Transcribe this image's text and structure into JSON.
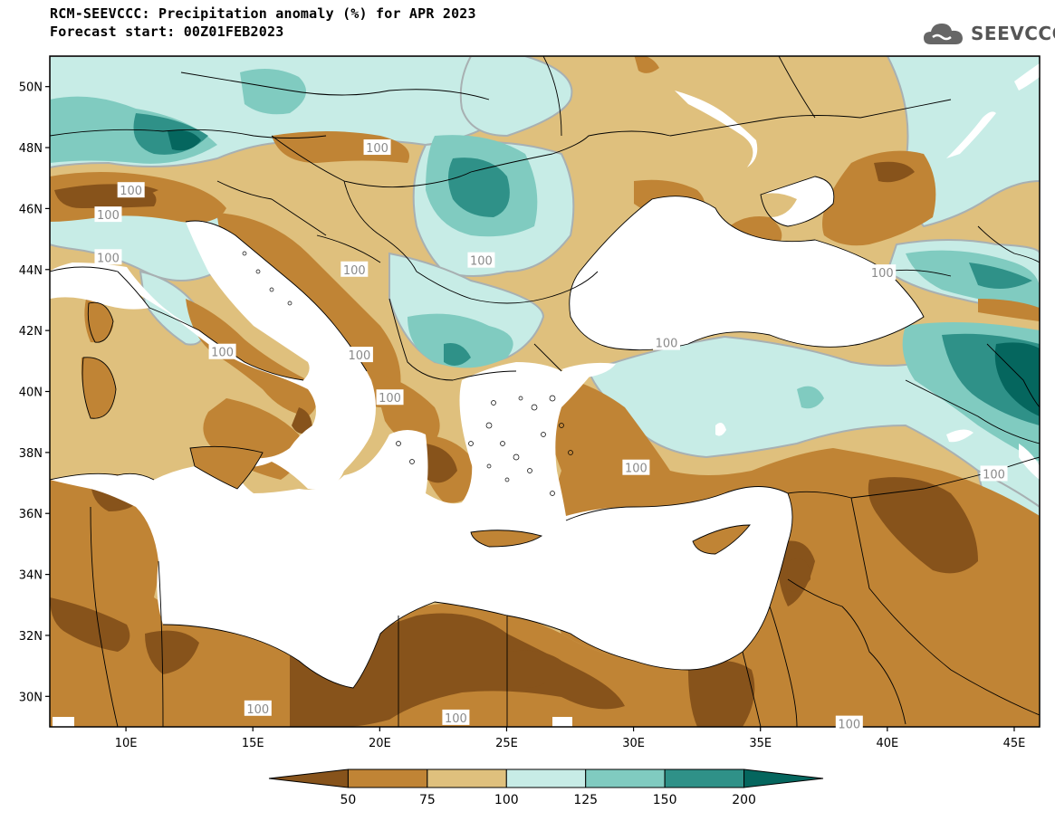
{
  "header": {
    "title_line1": "RCM-SEEVCCC: Precipitation anomaly (%) for APR 2023",
    "title_line2": "Forecast start: 00Z01FEB2023",
    "logo_text": "SEEVCCC",
    "logo_icon": "cloud-icon"
  },
  "map": {
    "lon_range": [
      7,
      46
    ],
    "lat_range": [
      29,
      51
    ],
    "lat_ticks": [
      {
        "value": 50,
        "label": "50N"
      },
      {
        "value": 48,
        "label": "48N"
      },
      {
        "value": 46,
        "label": "46N"
      },
      {
        "value": 44,
        "label": "44N"
      },
      {
        "value": 42,
        "label": "42N"
      },
      {
        "value": 40,
        "label": "40N"
      },
      {
        "value": 38,
        "label": "38N"
      },
      {
        "value": 36,
        "label": "36N"
      },
      {
        "value": 34,
        "label": "34N"
      },
      {
        "value": 32,
        "label": "32N"
      },
      {
        "value": 30,
        "label": "30N"
      }
    ],
    "lon_ticks": [
      {
        "value": 10,
        "label": "10E"
      },
      {
        "value": 15,
        "label": "15E"
      },
      {
        "value": 20,
        "label": "20E"
      },
      {
        "value": 25,
        "label": "25E"
      },
      {
        "value": 30,
        "label": "30E"
      },
      {
        "value": 35,
        "label": "35E"
      },
      {
        "value": 40,
        "label": "40E"
      },
      {
        "value": 45,
        "label": "45E"
      }
    ],
    "contour_labels": [
      {
        "text": "100",
        "lon": 19.9,
        "lat": 48.0
      },
      {
        "text": "100",
        "lon": 10.2,
        "lat": 46.6
      },
      {
        "text": "100",
        "lon": 9.3,
        "lat": 45.8
      },
      {
        "text": "100",
        "lon": 9.3,
        "lat": 44.4
      },
      {
        "text": "100",
        "lon": 19.0,
        "lat": 44.0
      },
      {
        "text": "100",
        "lon": 24.0,
        "lat": 44.3
      },
      {
        "text": "100",
        "lon": 39.8,
        "lat": 43.9
      },
      {
        "text": "100",
        "lon": 13.8,
        "lat": 41.3
      },
      {
        "text": "100",
        "lon": 31.3,
        "lat": 41.6
      },
      {
        "text": "100",
        "lon": 19.2,
        "lat": 41.2
      },
      {
        "text": "100",
        "lon": 20.4,
        "lat": 39.8
      },
      {
        "text": "100",
        "lon": 30.1,
        "lat": 37.5
      },
      {
        "text": "100",
        "lon": 44.2,
        "lat": 37.3
      },
      {
        "text": "100",
        "lon": 15.2,
        "lat": 29.6
      },
      {
        "text": "100",
        "lon": 23.0,
        "lat": 29.3
      },
      {
        "text": "100",
        "lon": 38.5,
        "lat": 29.1
      }
    ]
  },
  "colorbar": {
    "labels": [
      "50",
      "75",
      "100",
      "125",
      "150",
      "200"
    ],
    "colors": [
      "#87531b",
      "#c08435",
      "#dfc07d",
      "#c7ece6",
      "#80cbc0",
      "#2f9188",
      "#05665e"
    ]
  },
  "legend_colors": {
    "sea": "#ffffff",
    "contour_line": "#a8b0b2"
  }
}
